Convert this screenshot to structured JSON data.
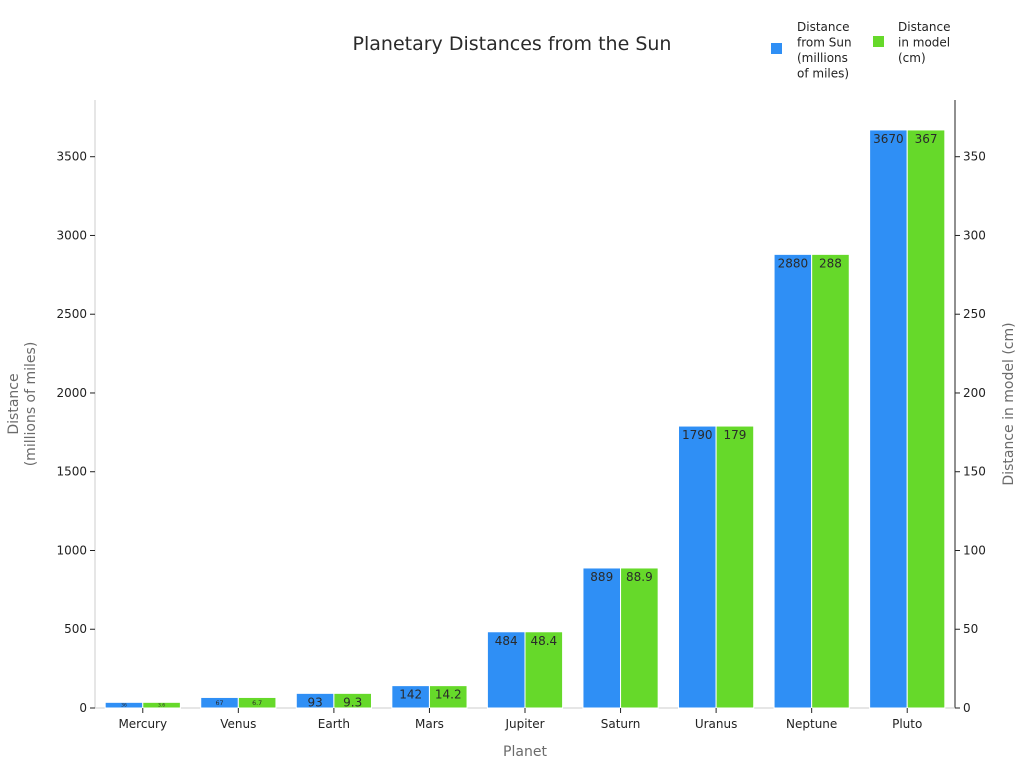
{
  "chart_data": {
    "type": "bar",
    "title": "Planetary Distances from the Sun",
    "xlabel": "Planet",
    "ylabel_left": [
      "Distance",
      "(millions of miles)"
    ],
    "ylabel_right": "Distance in model (cm)",
    "categories": [
      "Mercury",
      "Venus",
      "Earth",
      "Mars",
      "Jupiter",
      "Saturn",
      "Uranus",
      "Neptune",
      "Pluto"
    ],
    "series": [
      {
        "name": [
          "Distance",
          "from Sun",
          "(millions",
          "of miles)"
        ],
        "axis": "left",
        "color": "#2f8ff5",
        "values": [
          36,
          67,
          93,
          142,
          484,
          889,
          1790,
          2880,
          3670
        ],
        "labels": [
          "36",
          "67",
          "93",
          "142",
          "484",
          "889",
          "1790",
          "2880",
          "3670"
        ]
      },
      {
        "name": [
          "Distance",
          "in model",
          "(cm)"
        ],
        "axis": "right",
        "color": "#66d92a",
        "values": [
          3.6,
          6.7,
          9.3,
          14.2,
          48.4,
          88.9,
          179,
          288,
          367
        ],
        "labels": [
          "3.6",
          "6.7",
          "9.3",
          "14.2",
          "48.4",
          "88.9",
          "179",
          "288",
          "367"
        ]
      }
    ],
    "ylim_left": [
      0,
      3860
    ],
    "yticks_left": [
      0,
      500,
      1000,
      1500,
      2000,
      2500,
      3000,
      3500
    ],
    "ylim_right": [
      0,
      386
    ],
    "yticks_right": [
      0,
      50,
      100,
      150,
      200,
      250,
      300,
      350
    ],
    "grid": false,
    "legend_position": "top-right"
  }
}
